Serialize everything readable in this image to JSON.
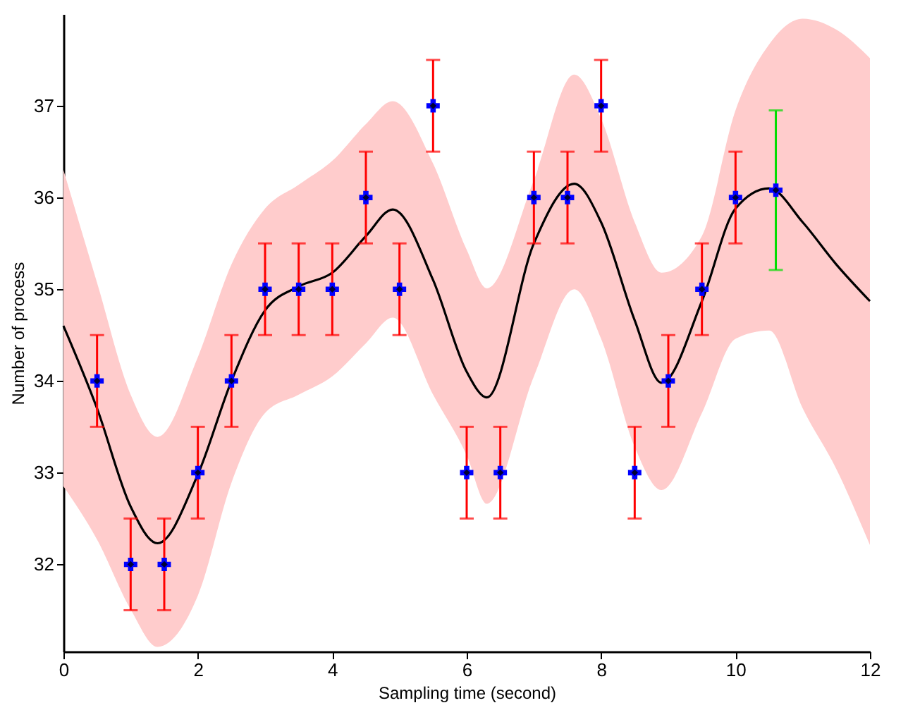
{
  "chart_data": {
    "type": "scatter",
    "xlabel": "Sampling time (second)",
    "ylabel": "Number of process",
    "xlim": [
      0,
      12
    ],
    "xticks": [
      0,
      2,
      4,
      6,
      8,
      10,
      12
    ],
    "ylim": [
      31.05,
      38
    ],
    "yticks": [
      32,
      33,
      34,
      35,
      36,
      37
    ],
    "grid": false,
    "series": [
      {
        "type": "line",
        "color": "#000000",
        "x": [
          0,
          0.5,
          1,
          1.4,
          2,
          2.5,
          3,
          3.5,
          4,
          4.5,
          4.9,
          5.5,
          6,
          6.3,
          7,
          7.6,
          8,
          8.5,
          8.9,
          9.5,
          10,
          10.5,
          11,
          11.5,
          12
        ],
        "values": [
          34.6,
          33.7,
          32.63,
          32.23,
          32.98,
          34.0,
          34.77,
          35.03,
          35.18,
          35.58,
          35.87,
          35.1,
          34.1,
          33.82,
          35.5,
          36.15,
          35.73,
          34.66,
          33.98,
          34.87,
          35.88,
          36.1,
          35.73,
          35.27,
          34.87
        ],
        "upper": [
          36.3,
          35.07,
          33.85,
          33.39,
          34.26,
          35.27,
          35.88,
          36.14,
          36.4,
          36.8,
          37.05,
          36.37,
          35.43,
          35.01,
          36.19,
          37.34,
          36.86,
          35.73,
          35.18,
          35.58,
          36.95,
          37.67,
          37.95,
          37.83,
          37.52
        ],
        "lower": [
          32.85,
          32.27,
          31.51,
          31.1,
          31.66,
          32.89,
          33.65,
          33.85,
          34.05,
          34.41,
          34.69,
          33.85,
          33.19,
          32.66,
          34.05,
          35.0,
          34.46,
          33.28,
          32.81,
          33.65,
          34.46,
          34.55,
          33.7,
          33.04,
          32.21
        ]
      },
      {
        "color": "#0000ff",
        "marker": "cross",
        "x": [
          0.5,
          1,
          1.5,
          2,
          2.5,
          3,
          3.5,
          4,
          4.5,
          5,
          5.5,
          6,
          6.5,
          7,
          7.5,
          8,
          8.5,
          9,
          9.5,
          10
        ],
        "values": [
          34,
          32,
          32,
          33,
          34,
          35,
          35,
          35,
          36,
          35,
          37,
          33,
          33,
          36,
          36,
          37,
          33,
          34,
          35,
          36
        ],
        "errors": [
          0.5,
          0.5,
          0.5,
          0.5,
          0.5,
          0.5,
          0.5,
          0.5,
          0.5,
          0.5,
          0.5,
          0.5,
          0.5,
          0.5,
          0.5,
          0.5,
          0.5,
          0.5,
          0.5,
          0.5
        ]
      },
      {
        "color": "#0000ff",
        "marker": "cross",
        "x": [
          10.6
        ],
        "values": [
          36.08
        ],
        "errors": [
          0.87
        ]
      }
    ]
  }
}
